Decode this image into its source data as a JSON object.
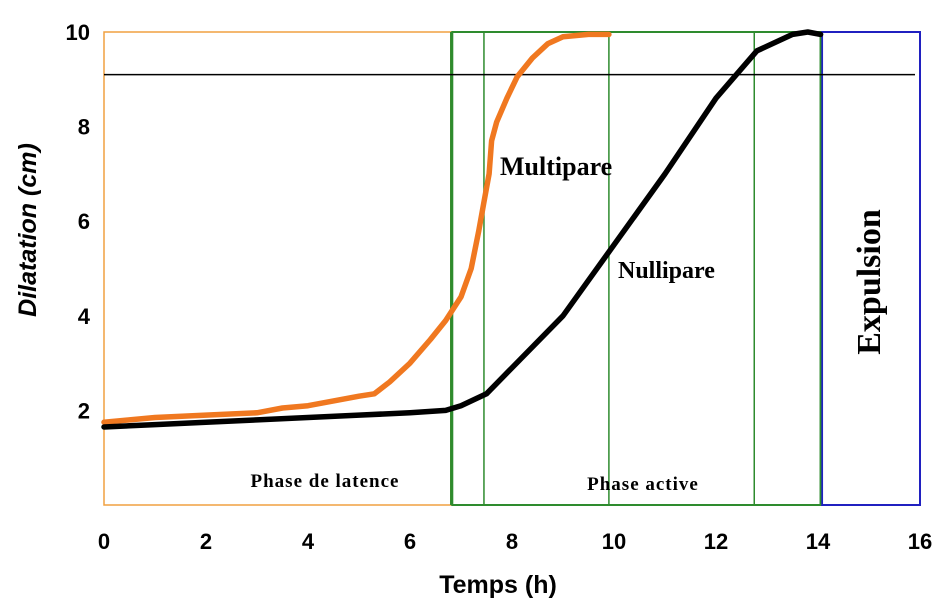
{
  "chart_data": {
    "type": "line",
    "xlabel": "Temps (h)",
    "ylabel": "Dilatation  (cm)",
    "xlim": [
      0,
      16
    ],
    "ylim": [
      0,
      10
    ],
    "x_ticks": [
      "0",
      "2",
      "4",
      "6",
      "8",
      "10",
      "12",
      "14",
      "16"
    ],
    "y_ticks": [
      "2",
      "4",
      "6",
      "8",
      "10"
    ],
    "y_tick_values": [
      2,
      4,
      6,
      8,
      10
    ],
    "x_tick_values": [
      0,
      2,
      4,
      6,
      8,
      10,
      12,
      14,
      16
    ],
    "reference_line_y": 9.1,
    "regions": [
      {
        "label": "Phase de latence",
        "x_start": 0,
        "x_end": 6.8,
        "color": "#f0a040"
      },
      {
        "label": "Phase active",
        "x_start": 6.8,
        "x_end": 14.05,
        "color": "#2e8b2e"
      },
      {
        "label": "Expulsion",
        "x_start": 14.05,
        "x_end": 16,
        "color": "#2020c0"
      }
    ],
    "vertical_markers": [
      6.8,
      7.45,
      9.9,
      12.75,
      14.05
    ],
    "series": [
      {
        "name": "Multipare",
        "color": "#f07820",
        "x": [
          0,
          0.5,
          1,
          2,
          3,
          3.5,
          4,
          4.5,
          5,
          5.3,
          5.6,
          6,
          6.4,
          6.7,
          7.0,
          7.2,
          7.35,
          7.45,
          7.55,
          7.6,
          7.7,
          7.9,
          8.1,
          8.4,
          8.7,
          9.0,
          9.5,
          9.9
        ],
        "y": [
          1.75,
          1.8,
          1.85,
          1.9,
          1.95,
          2.05,
          2.1,
          2.2,
          2.3,
          2.35,
          2.6,
          3.0,
          3.5,
          3.9,
          4.4,
          5.0,
          5.8,
          6.4,
          7.0,
          7.7,
          8.1,
          8.6,
          9.05,
          9.45,
          9.75,
          9.9,
          9.95,
          9.95
        ]
      },
      {
        "name": "Nullipare",
        "color": "#000000",
        "x": [
          0,
          1,
          2,
          3,
          4,
          5,
          6,
          6.7,
          7.0,
          7.5,
          9.0,
          10.0,
          11.0,
          12.0,
          12.8,
          13.5,
          13.8,
          14.05
        ],
        "y": [
          1.65,
          1.7,
          1.75,
          1.8,
          1.85,
          1.9,
          1.95,
          2.0,
          2.1,
          2.35,
          4.0,
          5.5,
          7.0,
          8.6,
          9.6,
          9.95,
          10.0,
          9.95
        ]
      }
    ],
    "annotations": [
      {
        "text": "Multipare",
        "target": "Multipare"
      },
      {
        "text": "Nullipare",
        "target": "Nullipare"
      },
      {
        "text": "Expulsion",
        "target": "Expulsion",
        "orientation": "vertical"
      }
    ]
  }
}
